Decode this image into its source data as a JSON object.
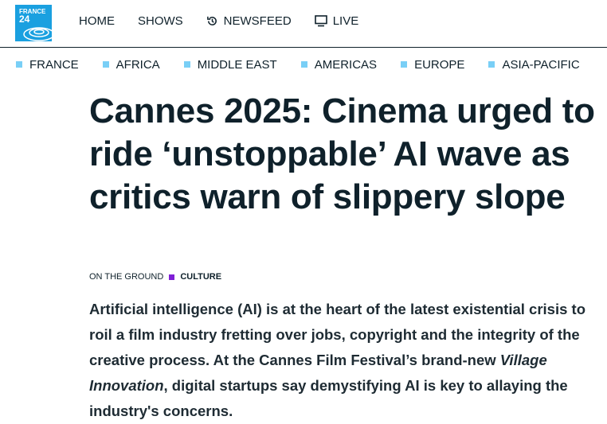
{
  "logo": {
    "line1": "FRANCE",
    "line2": "24"
  },
  "nav": {
    "items": [
      {
        "label": "HOME"
      },
      {
        "label": "SHOWS"
      },
      {
        "label": "NEWSFEED",
        "icon": "history-icon"
      },
      {
        "label": "LIVE",
        "icon": "tv-icon"
      }
    ]
  },
  "regions": [
    "FRANCE",
    "AFRICA",
    "MIDDLE EAST",
    "AMERICAS",
    "EUROPE",
    "ASIA-PACIFIC"
  ],
  "article": {
    "title": "Cannes 2025: Cinema urged to ride ‘unstoppable’ AI wave as critics warn of slippery slope",
    "kicker": "ON THE GROUND",
    "category": "CULTURE",
    "lead_1": "Artificial intelligence (AI) is at the heart of the latest existential crisis to roil a film industry fretting over jobs, copyright and the integrity of the creative process. At the Cannes Film Festival’s brand-new ",
    "lead_italic": "Village Innovation",
    "lead_2": ", digital startups say demystifying AI is key to allaying the industry's concerns."
  },
  "colors": {
    "brand": "#1aa0e0",
    "region_marker": "#79cff6",
    "category_marker": "#7f1fd6",
    "text": "#0f212b"
  }
}
